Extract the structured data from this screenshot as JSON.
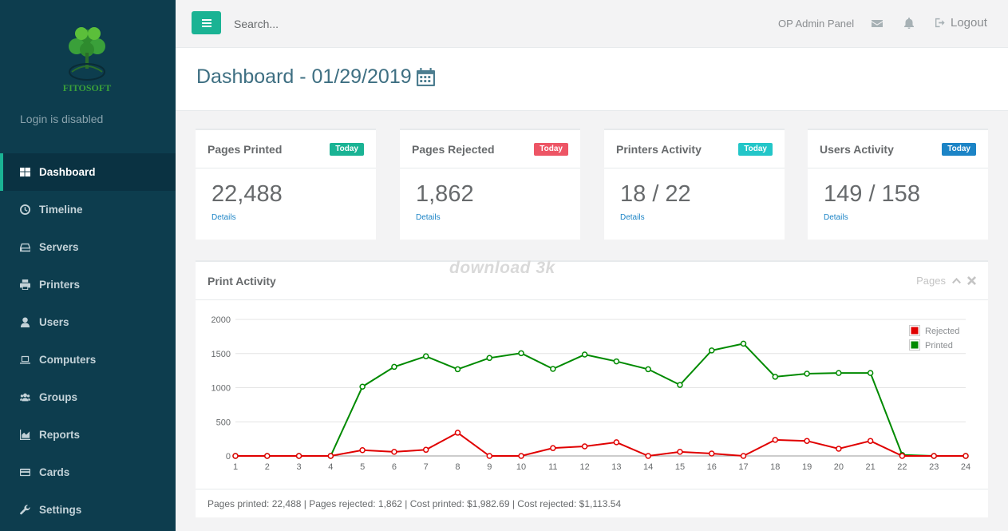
{
  "sidebar": {
    "logo_text": "FITOSOFT",
    "login_note": "Login is disabled",
    "items": [
      {
        "label": "Dashboard",
        "icon": "dashboard-icon",
        "active": true
      },
      {
        "label": "Timeline",
        "icon": "clock-icon"
      },
      {
        "label": "Servers",
        "icon": "server-icon"
      },
      {
        "label": "Printers",
        "icon": "printer-icon"
      },
      {
        "label": "Users",
        "icon": "user-icon"
      },
      {
        "label": "Computers",
        "icon": "laptop-icon"
      },
      {
        "label": "Groups",
        "icon": "group-icon"
      },
      {
        "label": "Reports",
        "icon": "area-chart-icon"
      },
      {
        "label": "Cards",
        "icon": "credit-card-icon"
      },
      {
        "label": "Settings",
        "icon": "wrench-icon"
      }
    ]
  },
  "topbar": {
    "search_placeholder": "Search...",
    "panel_name": "OP Admin Panel",
    "logout_label": "Logout"
  },
  "page": {
    "title": "Dashboard - 01/29/2019"
  },
  "stats": [
    {
      "title": "Pages Printed",
      "badge": "Today",
      "badge_color": "#1ab394",
      "value": "22,488",
      "link": "Details"
    },
    {
      "title": "Pages Rejected",
      "badge": "Today",
      "badge_color": "#ed5565",
      "value": "1,862",
      "link": "Details"
    },
    {
      "title": "Printers Activity",
      "badge": "Today",
      "badge_color": "#23c6c8",
      "value": "18 / 22",
      "link": "Details"
    },
    {
      "title": "Users Activity",
      "badge": "Today",
      "badge_color": "#1c84c6",
      "value": "149 / 158",
      "link": "Details"
    }
  ],
  "panel": {
    "title": "Print Activity",
    "tools_label": "Pages",
    "watermark": "download 3k",
    "footer": "Pages printed: 22,488 | Pages rejected: 1,862 | Cost printed: $1,982.69 | Cost rejected: $1,113.54"
  },
  "chart_data": {
    "type": "line",
    "x": [
      1,
      2,
      3,
      4,
      5,
      6,
      7,
      8,
      9,
      10,
      11,
      12,
      13,
      14,
      15,
      16,
      17,
      18,
      19,
      20,
      21,
      22,
      23,
      24
    ],
    "ylim": [
      0,
      2000
    ],
    "yticks": [
      0,
      500,
      1000,
      1500,
      2000
    ],
    "grid": true,
    "legend": "top-right",
    "series": [
      {
        "name": "Rejected",
        "color": "#e00000",
        "values": [
          0,
          0,
          0,
          0,
          85,
          60,
          90,
          340,
          0,
          0,
          115,
          140,
          200,
          0,
          60,
          35,
          0,
          235,
          220,
          105,
          220,
          0,
          0,
          0
        ]
      },
      {
        "name": "Printed",
        "color": "#008a00",
        "values": [
          0,
          0,
          0,
          0,
          1015,
          1305,
          1460,
          1270,
          1435,
          1505,
          1275,
          1485,
          1385,
          1270,
          1040,
          1545,
          1645,
          1160,
          1205,
          1215,
          1215,
          15,
          0,
          0
        ]
      }
    ]
  }
}
